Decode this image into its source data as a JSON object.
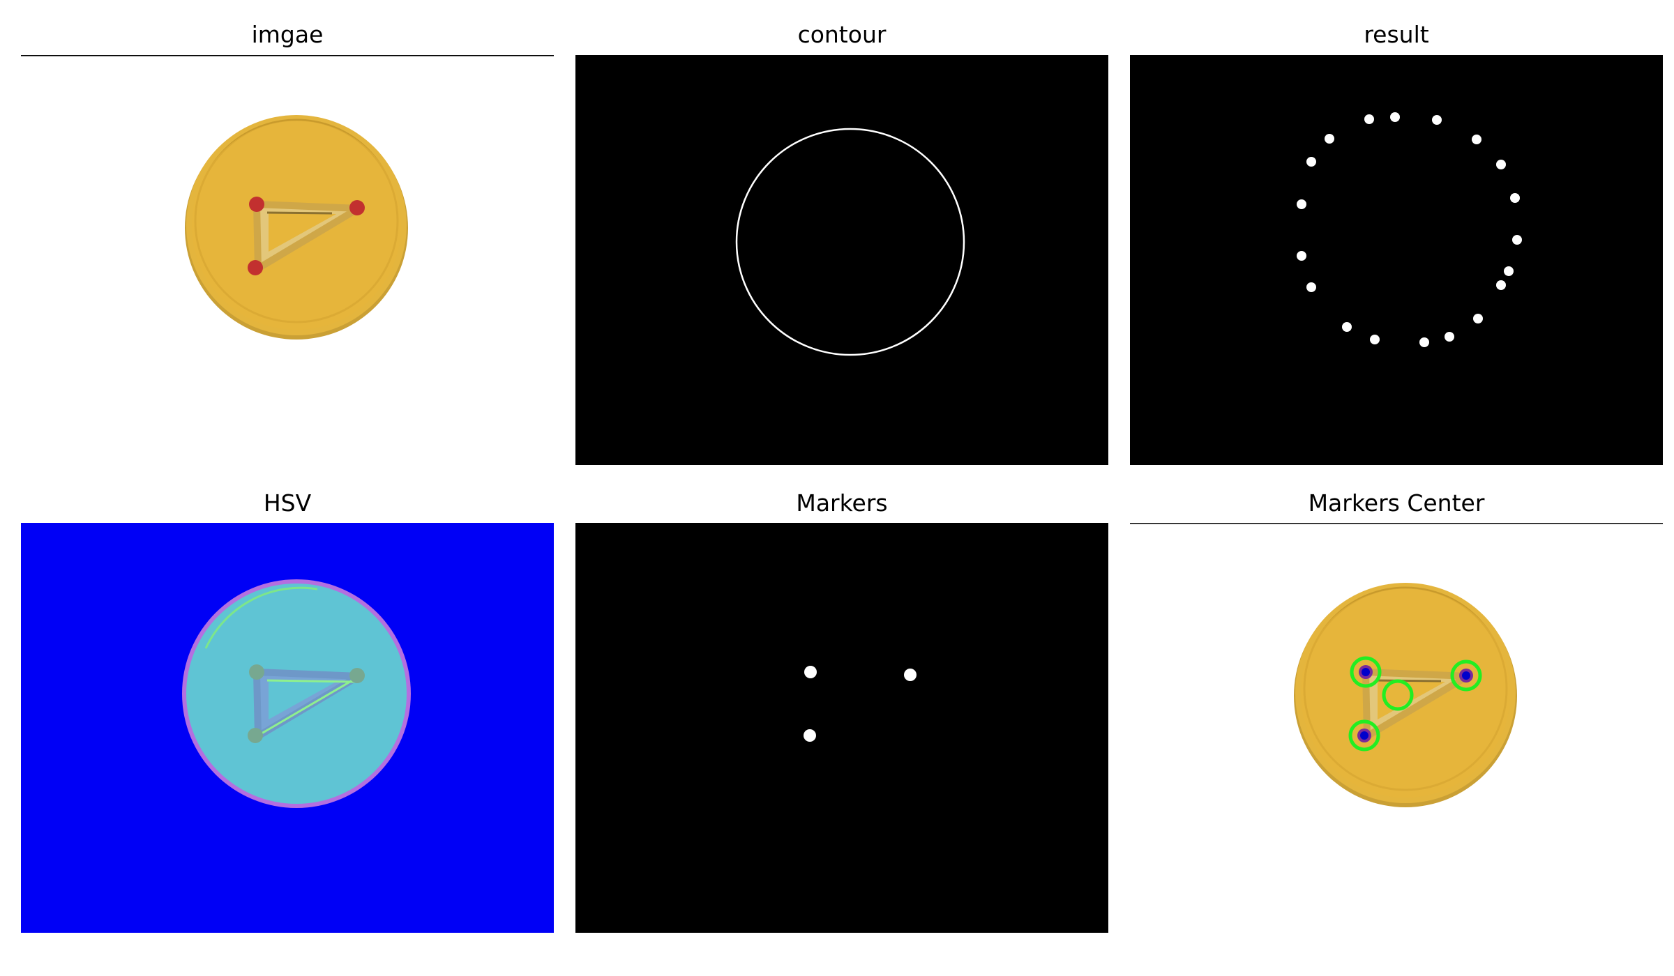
{
  "figure": {
    "panels": [
      {
        "title": "imgae",
        "content": "yellow-coin-with-red-markers"
      },
      {
        "title": "contour",
        "content": "white-circle-contour-on-black"
      },
      {
        "title": "result",
        "content": "white-dots-ring-on-black"
      },
      {
        "title": "HSV",
        "content": "hsv-converted-coin-on-blue"
      },
      {
        "title": "Markers",
        "content": "three-white-marker-dots-on-black"
      },
      {
        "title": "Markers Center",
        "content": "coin-with-green-marker-circles"
      }
    ]
  },
  "colors": {
    "black": "#000000",
    "coin_yellow": "#e7b63b",
    "coin_rim": "#d9ad34",
    "marker_red": "#c2302f",
    "hsv_blue": "#0000f6",
    "hsv_coin": "#5fc4d4",
    "green_circle": "#22ee22"
  }
}
